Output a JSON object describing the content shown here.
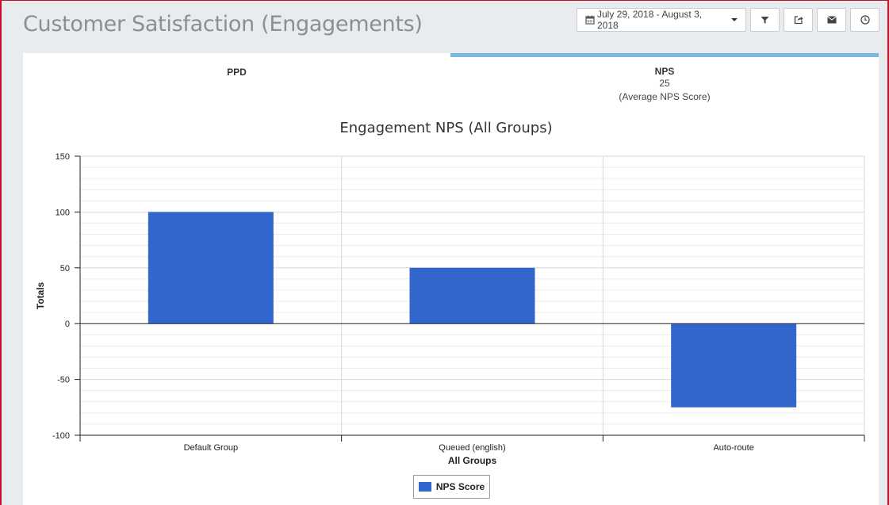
{
  "header": {
    "title": "Customer Satisfaction (Engagements)",
    "date_range": "July 29, 2018 - August 3, 2018",
    "buttons": [
      "calendar-icon",
      "filter-icon",
      "share-icon",
      "envelope-icon",
      "clock-icon"
    ]
  },
  "tabs": [
    {
      "label": "PPD",
      "value": "",
      "caption": ""
    },
    {
      "label": "NPS",
      "value": "25",
      "caption": "(Average NPS Score)"
    }
  ],
  "colors": {
    "bar": "#3366cc",
    "active_tab": "#7ab8e0"
  },
  "chart_data": {
    "type": "bar",
    "title": "Engagement NPS (All Groups)",
    "xlabel": "All Groups",
    "ylabel": "Totals",
    "categories": [
      "Default Group",
      "Queued (english)",
      "Auto-route"
    ],
    "series": [
      {
        "name": "NPS Score",
        "values": [
          100,
          50,
          -75
        ]
      }
    ],
    "ylim": [
      -100,
      150
    ],
    "yticks": [
      150,
      100,
      50,
      0,
      -50,
      -100
    ],
    "grid": true,
    "legend": "bottom"
  }
}
